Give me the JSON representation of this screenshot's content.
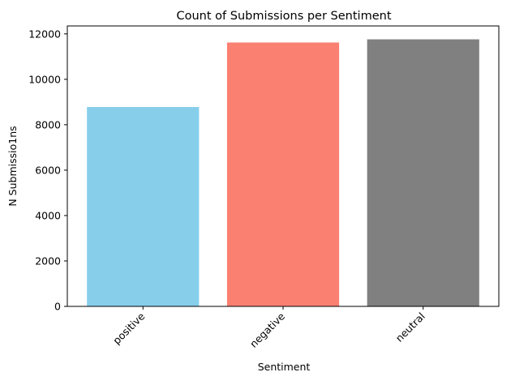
{
  "chart_data": {
    "type": "bar",
    "title": "Count of Submissions per Sentiment",
    "xlabel": "Sentiment",
    "ylabel": "N Submissio1ns",
    "categories": [
      "positive",
      "negative",
      "neutral"
    ],
    "values": [
      8780,
      11620,
      11760
    ],
    "colors": [
      "#87ceeb",
      "#fa8072",
      "#808080"
    ],
    "ylim": [
      0,
      12350
    ],
    "yticks": [
      0,
      2000,
      4000,
      6000,
      8000,
      10000,
      12000
    ],
    "ytick_labels": [
      "0",
      "2000",
      "4000",
      "6000",
      "8000",
      "10000",
      "12000"
    ],
    "grid": false,
    "legend": false
  }
}
